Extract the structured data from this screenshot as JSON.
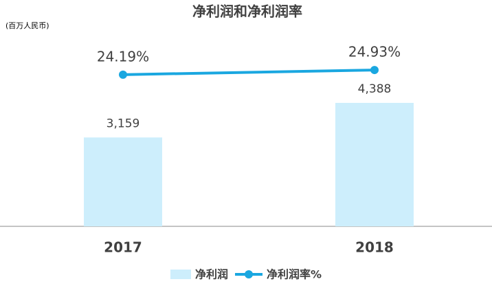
{
  "chart_data": {
    "type": "combo",
    "title": "净利润和净利润率",
    "subtitle": "(百万人民币)",
    "categories": [
      "2017",
      "2018"
    ],
    "series": [
      {
        "name": "净利润",
        "type": "bar",
        "color": "#cdeefc",
        "values": [
          3159,
          4388
        ],
        "value_labels": [
          "3,159",
          "4,388"
        ]
      },
      {
        "name": "净利润率%",
        "type": "line",
        "axis": "y2",
        "color": "#1aa7e0",
        "values": [
          24.19,
          24.93
        ],
        "value_labels": [
          "24.19%",
          "24.93%"
        ]
      }
    ],
    "ylim": [
      0,
      7800
    ],
    "y2lim": [
      0,
      35
    ]
  }
}
